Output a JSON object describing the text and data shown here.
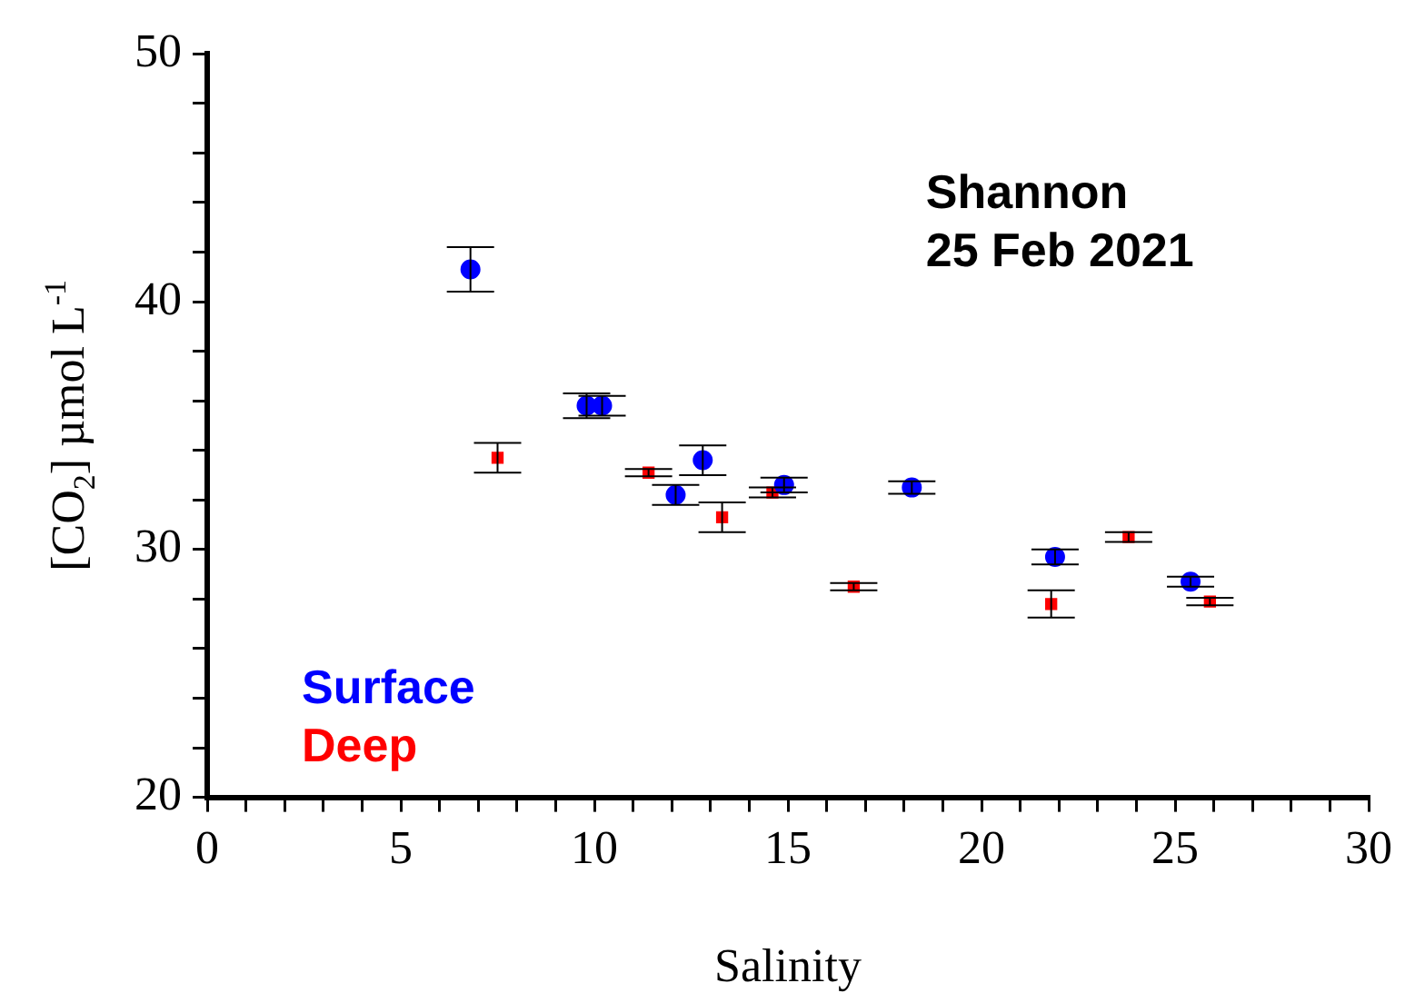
{
  "chart_data": {
    "type": "scatter",
    "title": "Shannon",
    "subtitle": "25 Feb 2021",
    "xlabel": "Salinity",
    "ylabel": "[CO$_{2}$] µmol L$^{-1}$",
    "xlim": [
      0,
      30
    ],
    "ylim": [
      20,
      50
    ],
    "xticks": [
      0,
      {
        "value": 1,
        "label": null
      },
      {
        "value": 2,
        "label": null
      },
      {
        "value": 3,
        "label": null
      },
      {
        "value": 4,
        "label": null
      },
      5,
      {
        "value": 6,
        "label": null
      },
      {
        "value": 7,
        "label": null
      },
      {
        "value": 8,
        "label": null
      },
      {
        "value": 9,
        "label": null
      },
      10,
      {
        "value": 11,
        "label": null
      },
      {
        "value": 12,
        "label": null
      },
      {
        "value": 13,
        "label": null
      },
      {
        "value": 14,
        "label": null
      },
      15,
      {
        "value": 16,
        "label": null
      },
      {
        "value": 17,
        "label": null
      },
      {
        "value": 18,
        "label": null
      },
      {
        "value": 19,
        "label": null
      },
      20,
      {
        "value": 21,
        "label": null
      },
      {
        "value": 22,
        "label": null
      },
      {
        "value": 23,
        "label": null
      },
      {
        "value": 24,
        "label": null
      },
      25,
      {
        "value": 26,
        "label": null
      },
      {
        "value": 27,
        "label": null
      },
      {
        "value": 28,
        "label": null
      },
      {
        "value": 29,
        "label": null
      },
      30
    ],
    "yticks": [
      20,
      {
        "value": 22,
        "label": null
      },
      {
        "value": 24,
        "label": null
      },
      {
        "value": 26,
        "label": null
      },
      {
        "value": 28,
        "label": null
      },
      30,
      {
        "value": 32,
        "label": null
      },
      {
        "value": 34,
        "label": null
      },
      {
        "value": 36,
        "label": null
      },
      {
        "value": 38,
        "label": null
      },
      40,
      {
        "value": 42,
        "label": null
      },
      {
        "value": 44,
        "label": null
      },
      {
        "value": 46,
        "label": null
      },
      {
        "value": 48,
        "label": null
      },
      50
    ],
    "grid": false,
    "legend": "bottom left",
    "series": [
      {
        "name": "Surface",
        "color": "#0000ff",
        "marker": "circle",
        "x": [
          6.8,
          9.8,
          10.2,
          12.1,
          12.8,
          14.9,
          18.2,
          21.9,
          25.4
        ],
        "values": [
          41.3,
          35.8,
          35.8,
          32.2,
          33.6,
          32.6,
          32.5,
          29.7,
          28.7
        ],
        "errors": [
          0.9,
          0.5,
          0.4,
          0.4,
          0.6,
          0.3,
          0.25,
          0.3,
          0.2
        ]
      },
      {
        "name": "Deep",
        "color": "#ff0000",
        "marker": "square",
        "x": [
          7.5,
          11.4,
          13.3,
          14.6,
          16.7,
          21.8,
          23.8,
          25.9
        ],
        "values": [
          33.7,
          33.1,
          31.3,
          32.3,
          28.5,
          27.8,
          30.5,
          27.9
        ],
        "errors": [
          0.6,
          0.15,
          0.6,
          0.2,
          0.15,
          0.55,
          0.2,
          0.15
        ]
      }
    ]
  }
}
